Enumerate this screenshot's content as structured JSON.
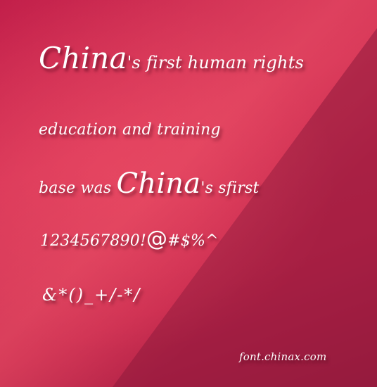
{
  "sample": {
    "line1_big": "China",
    "line1_rest": "'s first  human rights",
    "line2": "education and training",
    "line3_prefix": "base was ",
    "line3_big": "China",
    "line3_rest": "'s sfirst",
    "line4_digits": "1234567890!",
    "line4_at": "@",
    "line4_rest": "#$%^",
    "line5": "&*()_+/-*/"
  },
  "credit": "font.chinax.com",
  "colors": {
    "background": "#c8284e",
    "text": "#ffffff"
  }
}
